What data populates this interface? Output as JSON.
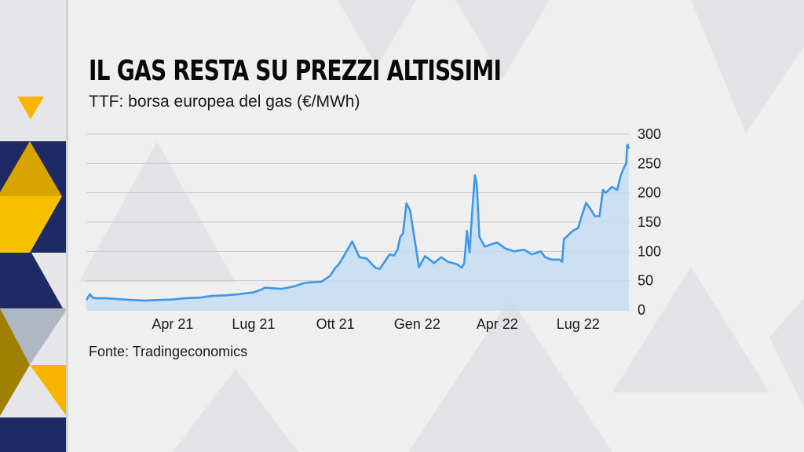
{
  "header": {
    "title": "IL GAS RESTA SU PREZZI ALTISSIMI",
    "subtitle": "TTF: borsa europea del gas (€/MWh)"
  },
  "footer": {
    "source": "Fonte: Tradingeconomics"
  },
  "colors": {
    "line": "#3d97e8",
    "area": "#c6ddf3",
    "navy": "#1e2a63",
    "yellow": "#f7b500"
  },
  "chart_data": {
    "type": "area",
    "title": "IL GAS RESTA SU PREZZI ALTISSIMI",
    "subtitle": "TTF: borsa europea del gas (€/MWh)",
    "xlabel": "",
    "ylabel": "",
    "ylim": [
      0,
      300
    ],
    "xlim": [
      "2020-12-25",
      "2022-08-28"
    ],
    "yticks": [
      0,
      50,
      100,
      150,
      200,
      250,
      300
    ],
    "xticks": [
      {
        "date": "2021-04-01",
        "label": "Apr 21"
      },
      {
        "date": "2021-07-01",
        "label": "Lug 21"
      },
      {
        "date": "2021-10-01",
        "label": "Ott 21"
      },
      {
        "date": "2022-01-01",
        "label": "Gen 22"
      },
      {
        "date": "2022-04-01",
        "label": "Apr 22"
      },
      {
        "date": "2022-07-01",
        "label": "Lug 22"
      }
    ],
    "grid": true,
    "y_axis_side": "right",
    "series": [
      {
        "x": [
          "2020-12-25",
          "2020-12-29",
          "2021-01-01",
          "2021-01-06",
          "2021-01-15",
          "2021-01-25",
          "2021-02-05",
          "2021-02-15",
          "2021-03-01",
          "2021-03-15",
          "2021-04-01",
          "2021-04-15",
          "2021-05-01",
          "2021-05-15",
          "2021-06-01",
          "2021-06-15",
          "2021-07-01",
          "2021-07-10",
          "2021-07-14",
          "2021-08-01",
          "2021-08-15",
          "2021-08-25",
          "2021-09-01",
          "2021-09-15",
          "2021-09-25",
          "2021-10-01",
          "2021-10-05",
          "2021-10-12",
          "2021-10-20",
          "2021-10-28",
          "2021-11-05",
          "2021-11-15",
          "2021-11-20",
          "2021-12-01",
          "2021-12-06",
          "2021-12-10",
          "2021-12-13",
          "2021-12-16",
          "2021-12-20",
          "2021-12-24",
          "2022-01-03",
          "2022-01-10",
          "2022-01-20",
          "2022-01-28",
          "2022-02-05",
          "2022-02-15",
          "2022-02-20",
          "2022-02-23",
          "2022-02-26",
          "2022-03-01",
          "2022-03-04",
          "2022-03-07",
          "2022-03-09",
          "2022-03-12",
          "2022-03-18",
          "2022-03-25",
          "2022-04-01",
          "2022-04-10",
          "2022-04-20",
          "2022-05-01",
          "2022-05-10",
          "2022-05-20",
          "2022-05-25",
          "2022-06-01",
          "2022-06-10",
          "2022-06-13",
          "2022-06-15",
          "2022-06-25",
          "2022-07-01",
          "2022-07-06",
          "2022-07-10",
          "2022-07-15",
          "2022-07-20",
          "2022-07-25",
          "2022-07-29",
          "2022-08-01",
          "2022-08-08",
          "2022-08-14",
          "2022-08-18",
          "2022-08-22",
          "2022-08-24",
          "2022-08-25",
          "2022-08-26",
          "2022-08-27"
        ],
        "y": [
          17,
          27,
          21,
          20,
          20,
          19,
          18,
          17,
          16,
          17,
          18,
          20,
          21,
          24,
          25,
          27,
          30,
          35,
          38,
          36,
          40,
          45,
          47,
          48,
          58,
          72,
          78,
          96,
          117,
          90,
          88,
          72,
          70,
          95,
          93,
          103,
          125,
          130,
          182,
          170,
          73,
          92,
          80,
          90,
          82,
          78,
          72,
          80,
          135,
          98,
          170,
          230,
          215,
          125,
          108,
          112,
          115,
          105,
          100,
          103,
          95,
          100,
          90,
          86,
          86,
          82,
          121,
          135,
          140,
          165,
          183,
          172,
          160,
          160,
          205,
          200,
          210,
          205,
          230,
          245,
          250,
          280,
          282,
          275
        ]
      }
    ]
  }
}
